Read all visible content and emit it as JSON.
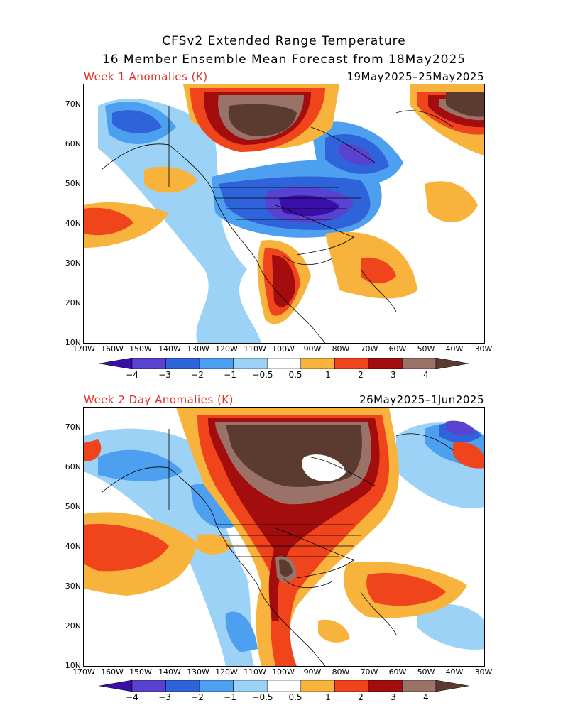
{
  "title_line1": "CFSv2 Extended Range Temperature",
  "title_line2": "16 Member Ensemble Mean Forecast from 18May2025",
  "panels": [
    {
      "label": "Week 1 Anomalies (K)",
      "dates": "19May2025–25May2025"
    },
    {
      "label": "Week 2 Day Anomalies (K)",
      "dates": "26May2025–1Jun2025"
    }
  ],
  "lat_labels": [
    "70N",
    "60N",
    "50N",
    "40N",
    "30N",
    "20N",
    "10N"
  ],
  "lon_labels": [
    "170W",
    "160W",
    "150W",
    "140W",
    "130W",
    "120W",
    "110W",
    "100W",
    "90W",
    "80W",
    "70W",
    "60W",
    "50W",
    "40W",
    "30W"
  ],
  "colorbar": {
    "labels": [
      "−4",
      "−3",
      "−2",
      "−1",
      "−0.5",
      "0.5",
      "1",
      "2",
      "3",
      "4"
    ],
    "colors": [
      "#3a0fa8",
      "#5a42d0",
      "#2f63d9",
      "#4d9ff0",
      "#9dd2f7",
      "#ffffff",
      "#f7b33b",
      "#f0441c",
      "#a30d0d",
      "#9a7268",
      "#5b3a30"
    ]
  },
  "colors": {
    "title": "#000000",
    "panel_label": "#e0302a"
  }
}
